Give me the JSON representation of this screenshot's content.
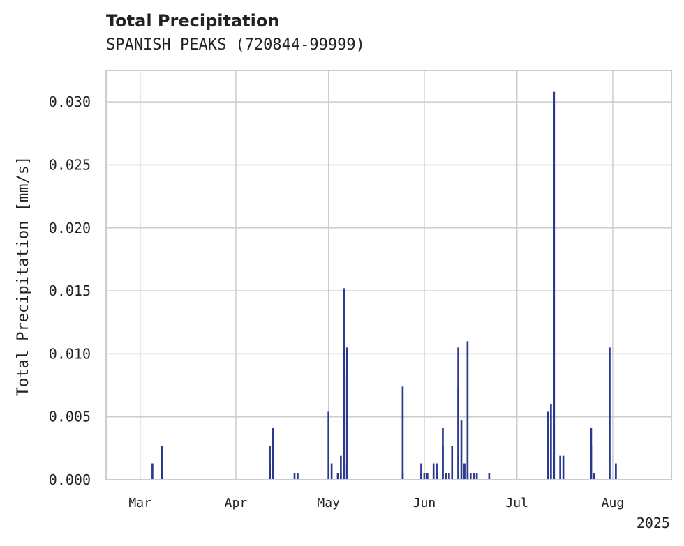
{
  "chart_data": {
    "type": "bar",
    "title": "Total Precipitation",
    "subtitle": "SPANISH PEAKS (720844-99999)",
    "xlabel": "",
    "ylabel": "Total Precipitation [mm/s]",
    "x_axis": "date",
    "xlim": [
      "2025-02-18",
      "2025-08-20"
    ],
    "ylim": [
      0,
      0.0325
    ],
    "y_ticks": [
      "0.000",
      "0.005",
      "0.010",
      "0.015",
      "0.020",
      "0.025",
      "0.030"
    ],
    "x_ticks": [
      {
        "date": "2025-03-01",
        "label": "Mar"
      },
      {
        "date": "2025-04-01",
        "label": "Apr"
      },
      {
        "date": "2025-05-01",
        "label": "May"
      },
      {
        "date": "2025-06-01",
        "label": "Jun"
      },
      {
        "date": "2025-07-01",
        "label": "Jul"
      },
      {
        "date": "2025-08-01",
        "label": "Aug"
      }
    ],
    "x_offset_label": "2025",
    "grid": true,
    "bar_color": "#2b3990",
    "series": [
      {
        "x": [
          "2025-03-05",
          "2025-03-08",
          "2025-03-08",
          "2025-04-12",
          "2025-04-12",
          "2025-04-13",
          "2025-04-20",
          "2025-04-21",
          "2025-05-01",
          "2025-05-02",
          "2025-05-04",
          "2025-05-05",
          "2025-05-05",
          "2025-05-06",
          "2025-05-06",
          "2025-05-06",
          "2025-05-07",
          "2025-05-07",
          "2025-05-07",
          "2025-05-07",
          "2025-05-25",
          "2025-05-25",
          "2025-05-31",
          "2025-05-31",
          "2025-06-01",
          "2025-06-02",
          "2025-06-04",
          "2025-06-05",
          "2025-06-05",
          "2025-06-07",
          "2025-06-07",
          "2025-06-08",
          "2025-06-09",
          "2025-06-10",
          "2025-06-12",
          "2025-06-12",
          "2025-06-13",
          "2025-06-14",
          "2025-06-14",
          "2025-06-15",
          "2025-06-15",
          "2025-06-16",
          "2025-06-17",
          "2025-06-17",
          "2025-06-18",
          "2025-06-22",
          "2025-07-11",
          "2025-07-12",
          "2025-07-13",
          "2025-07-15",
          "2025-07-16",
          "2025-07-25",
          "2025-07-25",
          "2025-07-26",
          "2025-07-31",
          "2025-08-02",
          "2025-08-02"
        ],
        "values": [
          0.0013,
          0.0027,
          0.0005,
          0.0013,
          0.0027,
          0.0041,
          0.0005,
          0.0005,
          0.0054,
          0.0013,
          0.0005,
          0.0019,
          0.0005,
          0.0027,
          0.0132,
          0.0152,
          0.0013,
          0.0084,
          0.0105,
          0.0013,
          0.0074,
          0.0005,
          0.0005,
          0.0013,
          0.0005,
          0.0005,
          0.0013,
          0.0005,
          0.0013,
          0.0041,
          0.0027,
          0.0005,
          0.0005,
          0.0027,
          0.0105,
          0.0074,
          0.0047,
          0.0013,
          0.0013,
          0.011,
          0.0005,
          0.0005,
          0.0005,
          0.0005,
          0.0005,
          0.0005,
          0.0054,
          0.006,
          0.0308,
          0.0019,
          0.0019,
          0.0041,
          0.0027,
          0.0005,
          0.0105,
          0.0013,
          0.0013
        ]
      }
    ]
  }
}
